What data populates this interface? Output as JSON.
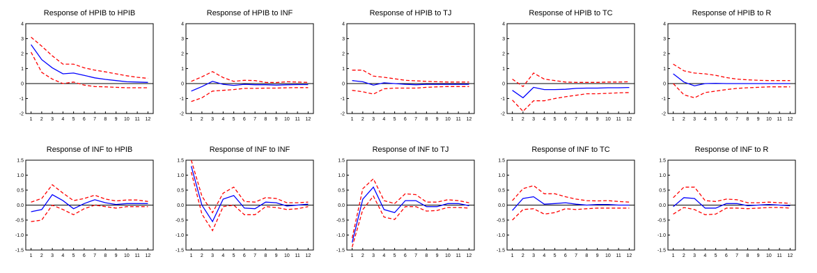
{
  "colors": {
    "response": "#0000ff",
    "band": "#ff0000",
    "zero": "#000000",
    "axis": "#000000"
  },
  "chart_data": [
    {
      "type": "line",
      "title": "Response of HPIB to HPIB",
      "x": [
        1,
        2,
        3,
        4,
        5,
        6,
        7,
        8,
        9,
        10,
        11,
        12
      ],
      "ylim": [
        -2,
        4
      ],
      "yticks": [
        "-2",
        "-1",
        "0",
        "1",
        "2",
        "3",
        "4"
      ],
      "series": [
        {
          "values": [
            2.6,
            1.6,
            1.05,
            0.65,
            0.7,
            0.55,
            0.38,
            0.28,
            0.2,
            0.12,
            0.1,
            0.08
          ]
        },
        {
          "values": [
            3.1,
            2.5,
            1.85,
            1.3,
            1.3,
            1.05,
            0.9,
            0.78,
            0.65,
            0.52,
            0.42,
            0.35
          ]
        },
        {
          "values": [
            2.1,
            0.75,
            0.3,
            0.0,
            0.1,
            -0.1,
            -0.2,
            -0.22,
            -0.25,
            -0.28,
            -0.28,
            -0.28
          ]
        }
      ]
    },
    {
      "type": "line",
      "title": "Response of HPIB to INF",
      "x": [
        1,
        2,
        3,
        4,
        5,
        6,
        7,
        8,
        9,
        10,
        11,
        12
      ],
      "ylim": [
        -2,
        4
      ],
      "yticks": [
        "-2",
        "-1",
        "0",
        "1",
        "2",
        "3",
        "4"
      ],
      "series": [
        {
          "values": [
            -0.5,
            -0.2,
            0.15,
            -0.05,
            -0.12,
            -0.05,
            -0.08,
            -0.08,
            -0.1,
            -0.08,
            -0.07,
            -0.07
          ]
        },
        {
          "values": [
            0.15,
            0.45,
            0.8,
            0.4,
            0.15,
            0.22,
            0.2,
            0.08,
            0.07,
            0.12,
            0.1,
            0.08
          ]
        },
        {
          "values": [
            -1.2,
            -0.95,
            -0.5,
            -0.45,
            -0.4,
            -0.32,
            -0.32,
            -0.3,
            -0.3,
            -0.28,
            -0.27,
            -0.27
          ]
        }
      ]
    },
    {
      "type": "line",
      "title": "Response of HPIB to TJ",
      "x": [
        1,
        2,
        3,
        4,
        5,
        6,
        7,
        8,
        9,
        10,
        11,
        12
      ],
      "ylim": [
        -2,
        4
      ],
      "yticks": [
        "-2",
        "-1",
        "0",
        "1",
        "2",
        "3",
        "4"
      ],
      "series": [
        {
          "values": [
            0.2,
            0.12,
            -0.1,
            0.05,
            0.0,
            -0.05,
            -0.08,
            -0.05,
            -0.05,
            -0.05,
            -0.05,
            -0.05
          ]
        },
        {
          "values": [
            0.9,
            0.9,
            0.5,
            0.42,
            0.32,
            0.22,
            0.18,
            0.15,
            0.12,
            0.1,
            0.1,
            0.1
          ]
        },
        {
          "values": [
            -0.45,
            -0.55,
            -0.7,
            -0.35,
            -0.3,
            -0.3,
            -0.3,
            -0.25,
            -0.22,
            -0.2,
            -0.2,
            -0.2
          ]
        }
      ]
    },
    {
      "type": "line",
      "title": "Response of HPIB to TC",
      "x": [
        1,
        2,
        3,
        4,
        5,
        6,
        7,
        8,
        9,
        10,
        11,
        12
      ],
      "ylim": [
        -2,
        4
      ],
      "yticks": [
        "-2",
        "-1",
        "0",
        "1",
        "2",
        "3",
        "4"
      ],
      "series": [
        {
          "values": [
            -0.45,
            -0.95,
            -0.25,
            -0.4,
            -0.4,
            -0.38,
            -0.32,
            -0.3,
            -0.3,
            -0.28,
            -0.28,
            -0.26
          ]
        },
        {
          "values": [
            0.3,
            -0.2,
            0.7,
            0.3,
            0.2,
            0.1,
            0.08,
            0.08,
            0.08,
            0.1,
            0.1,
            0.12
          ]
        },
        {
          "values": [
            -1.1,
            -1.85,
            -1.15,
            -1.15,
            -1.0,
            -0.88,
            -0.78,
            -0.68,
            -0.68,
            -0.65,
            -0.62,
            -0.6
          ]
        }
      ]
    },
    {
      "type": "line",
      "title": "Response of HPIB to R",
      "x": [
        1,
        2,
        3,
        4,
        5,
        6,
        7,
        8,
        9,
        10,
        11,
        12
      ],
      "ylim": [
        -2,
        4
      ],
      "yticks": [
        "-2",
        "-1",
        "0",
        "1",
        "2",
        "3",
        "4"
      ],
      "series": [
        {
          "values": [
            0.65,
            0.1,
            -0.15,
            0.0,
            0.02,
            0.0,
            0.0,
            0.0,
            0.0,
            0.0,
            0.0,
            0.0
          ]
        },
        {
          "values": [
            1.3,
            0.85,
            0.7,
            0.65,
            0.55,
            0.4,
            0.3,
            0.25,
            0.22,
            0.2,
            0.2,
            0.2
          ]
        },
        {
          "values": [
            0.0,
            -0.75,
            -0.95,
            -0.6,
            -0.5,
            -0.4,
            -0.32,
            -0.28,
            -0.25,
            -0.22,
            -0.22,
            -0.22
          ]
        }
      ]
    },
    {
      "type": "line",
      "title": "Response of INF to HPIB",
      "x": [
        1,
        2,
        3,
        4,
        5,
        6,
        7,
        8,
        9,
        10,
        11,
        12
      ],
      "ylim": [
        -1.5,
        1.5
      ],
      "yticks": [
        "-1.5",
        "-1.0",
        "-0.5",
        "0.0",
        "0.5",
        "1.0",
        "1.5"
      ],
      "series": [
        {
          "values": [
            -0.22,
            -0.15,
            0.35,
            0.15,
            -0.12,
            0.05,
            0.18,
            0.08,
            0.02,
            0.05,
            0.05,
            0.05
          ]
        },
        {
          "values": [
            0.1,
            0.22,
            0.68,
            0.4,
            0.15,
            0.22,
            0.33,
            0.2,
            0.14,
            0.17,
            0.17,
            0.12
          ]
        },
        {
          "values": [
            -0.55,
            -0.5,
            0.0,
            -0.15,
            -0.32,
            -0.12,
            0.0,
            -0.05,
            -0.1,
            -0.05,
            -0.05,
            -0.05
          ]
        }
      ]
    },
    {
      "type": "line",
      "title": "Response of INF to INF",
      "x": [
        1,
        2,
        3,
        4,
        5,
        6,
        7,
        8,
        9,
        10,
        11,
        12
      ],
      "ylim": [
        -1.5,
        1.5
      ],
      "yticks": [
        "-1.5",
        "-1.0",
        "-0.5",
        "0.0",
        "0.5",
        "1.0",
        "1.5"
      ],
      "series": [
        {
          "values": [
            1.3,
            0.0,
            -0.55,
            0.2,
            0.32,
            -0.1,
            -0.12,
            0.1,
            0.08,
            -0.03,
            0.0,
            0.03
          ]
        },
        {
          "values": [
            1.5,
            0.3,
            -0.25,
            0.4,
            0.6,
            0.12,
            0.1,
            0.25,
            0.22,
            0.08,
            0.08,
            0.1
          ]
        },
        {
          "values": [
            1.1,
            -0.3,
            -0.85,
            -0.05,
            0.0,
            -0.32,
            -0.32,
            -0.05,
            -0.08,
            -0.15,
            -0.12,
            -0.05
          ]
        }
      ]
    },
    {
      "type": "line",
      "title": "Response of INF to TJ",
      "x": [
        1,
        2,
        3,
        4,
        5,
        6,
        7,
        8,
        9,
        10,
        11,
        12
      ],
      "ylim": [
        -1.5,
        1.5
      ],
      "yticks": [
        "-1.5",
        "-1.0",
        "-0.5",
        "0.0",
        "0.5",
        "1.0",
        "1.5"
      ],
      "series": [
        {
          "values": [
            -1.25,
            0.2,
            0.6,
            -0.15,
            -0.25,
            0.15,
            0.15,
            -0.05,
            -0.05,
            0.05,
            0.05,
            -0.02
          ]
        },
        {
          "values": [
            -1.1,
            0.55,
            0.88,
            0.15,
            0.05,
            0.38,
            0.35,
            0.1,
            0.1,
            0.18,
            0.15,
            0.08
          ]
        },
        {
          "values": [
            -1.4,
            -0.15,
            0.3,
            -0.4,
            -0.48,
            -0.05,
            -0.05,
            -0.2,
            -0.18,
            -0.08,
            -0.08,
            -0.1
          ]
        }
      ]
    },
    {
      "type": "line",
      "title": "Response of INF to TC",
      "x": [
        1,
        2,
        3,
        4,
        5,
        6,
        7,
        8,
        9,
        10,
        11,
        12
      ],
      "ylim": [
        -1.5,
        1.5
      ],
      "yticks": [
        "-1.5",
        "-1.0",
        "-0.5",
        "0.0",
        "0.5",
        "1.0",
        "1.5"
      ],
      "series": [
        {
          "values": [
            -0.18,
            0.22,
            0.28,
            0.03,
            0.05,
            0.08,
            0.03,
            0.0,
            0.02,
            0.02,
            0.0,
            0.0
          ]
        },
        {
          "values": [
            0.15,
            0.55,
            0.65,
            0.38,
            0.38,
            0.28,
            0.2,
            0.15,
            0.14,
            0.15,
            0.12,
            0.1
          ]
        },
        {
          "values": [
            -0.5,
            -0.15,
            -0.12,
            -0.3,
            -0.25,
            -0.12,
            -0.15,
            -0.12,
            -0.1,
            -0.1,
            -0.1,
            -0.1
          ]
        }
      ]
    },
    {
      "type": "line",
      "title": "Response of INF to R",
      "x": [
        1,
        2,
        3,
        4,
        5,
        6,
        7,
        8,
        9,
        10,
        11,
        12
      ],
      "ylim": [
        -1.5,
        1.5
      ],
      "yticks": [
        "-1.5",
        "-1.0",
        "-0.5",
        "0.0",
        "0.5",
        "1.0",
        "1.5"
      ],
      "series": [
        {
          "values": [
            -0.05,
            0.25,
            0.22,
            -0.1,
            -0.1,
            0.05,
            0.05,
            -0.02,
            0.0,
            0.02,
            0.0,
            -0.02
          ]
        },
        {
          "values": [
            0.25,
            0.6,
            0.6,
            0.15,
            0.12,
            0.2,
            0.18,
            0.08,
            0.08,
            0.1,
            0.08,
            0.06
          ]
        },
        {
          "values": [
            -0.3,
            -0.08,
            -0.15,
            -0.32,
            -0.3,
            -0.1,
            -0.1,
            -0.12,
            -0.1,
            -0.08,
            -0.08,
            -0.1
          ]
        }
      ]
    }
  ]
}
